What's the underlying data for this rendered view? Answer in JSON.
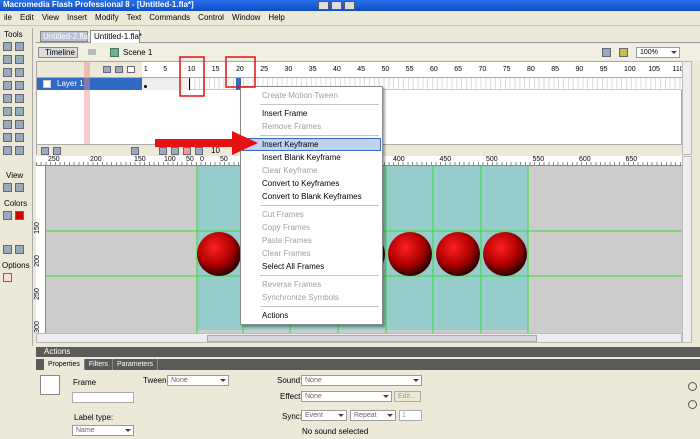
{
  "title_bar": "Macromedia Flash Professional 8 - [Untitled-1.fla*]",
  "menu": [
    "ile",
    "Edit",
    "View",
    "Insert",
    "Modify",
    "Text",
    "Commands",
    "Control",
    "Window",
    "Help"
  ],
  "tools": {
    "title": "Tools",
    "view": "View",
    "colors": "Colors",
    "options": "Options"
  },
  "tabs": [
    "Untitled-2.fla*",
    "Untitled-1.fla*"
  ],
  "timeline": {
    "button": "Timeline",
    "scene": "Scene 1",
    "zoom": "100%",
    "frame_numbers": [
      1,
      5,
      10,
      15,
      20,
      25,
      30,
      35,
      40,
      45,
      50,
      55,
      60,
      65,
      70,
      75,
      80,
      85,
      90,
      95,
      100,
      105,
      110
    ],
    "layer": "Layer 1",
    "current_frame": "10"
  },
  "stage": {
    "ruler_x_left": [
      "250",
      "200",
      "150",
      "100",
      "50",
      "0",
      "50"
    ],
    "ruler_x_right": [
      "400",
      "450",
      "500",
      "550",
      "600",
      "650"
    ],
    "ruler_y": [
      "150",
      "200",
      "250",
      "300"
    ]
  },
  "context_menu": [
    [
      {
        "label": "Create Motion Tween",
        "enabled": false
      }
    ],
    [
      {
        "label": "Insert Frame",
        "enabled": true
      },
      {
        "label": "Remove Frames",
        "enabled": false
      }
    ],
    [
      {
        "label": "Insert Keyframe",
        "enabled": true,
        "highlighted": true
      },
      {
        "label": "Insert Blank Keyframe",
        "enabled": true
      },
      {
        "label": "Clear Keyframe",
        "enabled": false
      },
      {
        "label": "Convert to Keyframes",
        "enabled": true
      },
      {
        "label": "Convert to Blank Keyframes",
        "enabled": true
      }
    ],
    [
      {
        "label": "Cut Frames",
        "enabled": false
      },
      {
        "label": "Copy Frames",
        "enabled": false
      },
      {
        "label": "Paste Frames",
        "enabled": false
      },
      {
        "label": "Clear Frames",
        "enabled": false
      },
      {
        "label": "Select All Frames",
        "enabled": true
      }
    ],
    [
      {
        "label": "Reverse Frames",
        "enabled": false
      },
      {
        "label": "Synchronize Symbols",
        "enabled": false
      }
    ],
    [
      {
        "label": "Actions",
        "enabled": true
      }
    ]
  ],
  "panels": {
    "actions": "Actions",
    "tabs": [
      "Properties",
      "Filters",
      "Parameters"
    ]
  },
  "properties": {
    "frame": "Frame",
    "tween_label": "Tween:",
    "tween": "None",
    "sound_label": "Sound:",
    "sound": "None",
    "effect_label": "Effect:",
    "effect": "None",
    "edit": "Edit...",
    "label_type": "Label type:",
    "name": "Name",
    "sync_label": "Sync:",
    "sync": "Event",
    "repeat": "Repeat",
    "repeat_count": "1",
    "status": "No sound selected"
  }
}
